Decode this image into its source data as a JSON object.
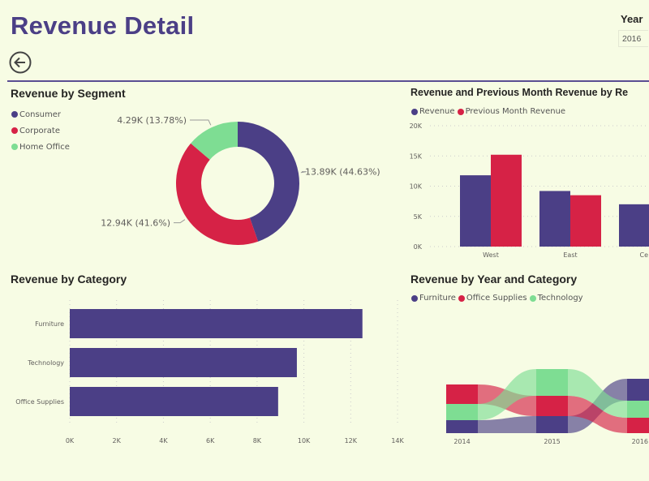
{
  "header": {
    "title": "Revenue Detail",
    "back_icon": "arrow-left-circle-icon"
  },
  "slicer": {
    "label": "Year",
    "value": "2016"
  },
  "colors": {
    "purple": "#4B3F86",
    "red": "#D62246",
    "green": "#7EDD93",
    "title": "#4B3F86"
  },
  "chart_data": [
    {
      "type": "pie",
      "title": "Revenue by Segment",
      "donut": true,
      "legend": "top-left",
      "categories": [
        "Consumer",
        "Corporate",
        "Home Office"
      ],
      "values": [
        13.89,
        12.94,
        4.29
      ],
      "unit": "K",
      "data_labels": [
        "13.89K (44.63%)",
        "12.94K (41.6%)",
        "4.29K (13.78%)"
      ]
    },
    {
      "type": "bar",
      "title": "Revenue and Previous Month Revenue by Re",
      "legend": "top-left",
      "categories": [
        "West",
        "East",
        "Ce"
      ],
      "series": [
        {
          "name": "Revenue",
          "values": [
            11.8,
            9.2,
            7.0
          ]
        },
        {
          "name": "Previous Month Revenue",
          "values": [
            15.2,
            8.5,
            null
          ]
        }
      ],
      "yticks": [
        "0K",
        "5K",
        "10K",
        "15K",
        "20K"
      ],
      "ylim": [
        0,
        20
      ],
      "grid": true
    },
    {
      "type": "bar",
      "orientation": "horizontal",
      "title": "Revenue by Category",
      "categories": [
        "Furniture",
        "Technology",
        "Office Supplies"
      ],
      "values": [
        12.5,
        9.7,
        8.9
      ],
      "xticks": [
        "0K",
        "2K",
        "4K",
        "6K",
        "8K",
        "10K",
        "12K",
        "14K"
      ],
      "xlim": [
        0,
        14
      ],
      "grid": true
    },
    {
      "type": "area",
      "subtype": "ribbon",
      "title": "Revenue by Year and Category",
      "legend": "top-left",
      "categories": [
        "2014",
        "2015",
        "2016"
      ],
      "series": [
        {
          "name": "Furniture",
          "values": [
            16,
            21,
            27
          ]
        },
        {
          "name": "Office Supplies",
          "values": [
            24,
            25,
            19
          ]
        },
        {
          "name": "Technology",
          "values": [
            20,
            33,
            21
          ]
        }
      ]
    }
  ]
}
